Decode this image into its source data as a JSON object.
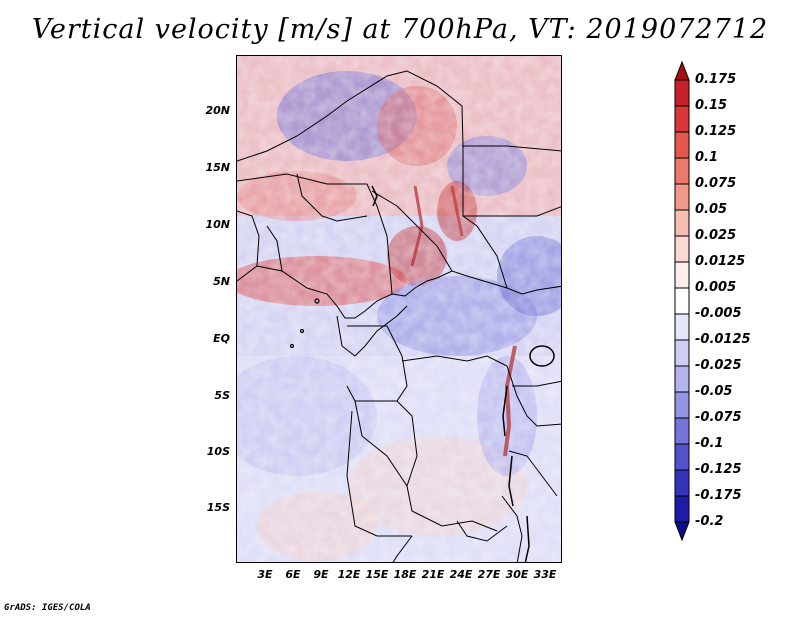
{
  "title": "Vertical velocity [m/s] at 700hPa, VT: 2019072712",
  "footer": "GrADS: IGES/COLA",
  "map": {
    "region": "Central Africa",
    "variable": "Vertical velocity",
    "units": "m/s",
    "level": "700hPa",
    "valid_time": "2019072712"
  },
  "latitude_labels": [
    "20N",
    "15N",
    "10N",
    "5N",
    "EQ",
    "5S",
    "10S",
    "15S"
  ],
  "longitude_labels": [
    "3E",
    "6E",
    "9E",
    "12E",
    "15E",
    "18E",
    "21E",
    "24E",
    "27E",
    "30E",
    "33E"
  ],
  "colorbar": {
    "labels": [
      "0.175",
      "0.15",
      "0.125",
      "0.1",
      "0.075",
      "0.05",
      "0.025",
      "0.0125",
      "0.005",
      "-0.005",
      "-0.0125",
      "-0.025",
      "-0.05",
      "-0.075",
      "-0.1",
      "-0.125",
      "-0.175",
      "-0.2"
    ],
    "colors": [
      "#a50f15",
      "#c8202a",
      "#d9373a",
      "#e5584e",
      "#ec7a6c",
      "#f19a8c",
      "#f6bdb2",
      "#fad9d2",
      "#fdeeea",
      "#ffffff",
      "#e6e6fa",
      "#cfcff5",
      "#b4b4ef",
      "#9595e6",
      "#7474da",
      "#5252cc",
      "#3434bb",
      "#1c1ca6",
      "#0d0d8a"
    ]
  }
}
